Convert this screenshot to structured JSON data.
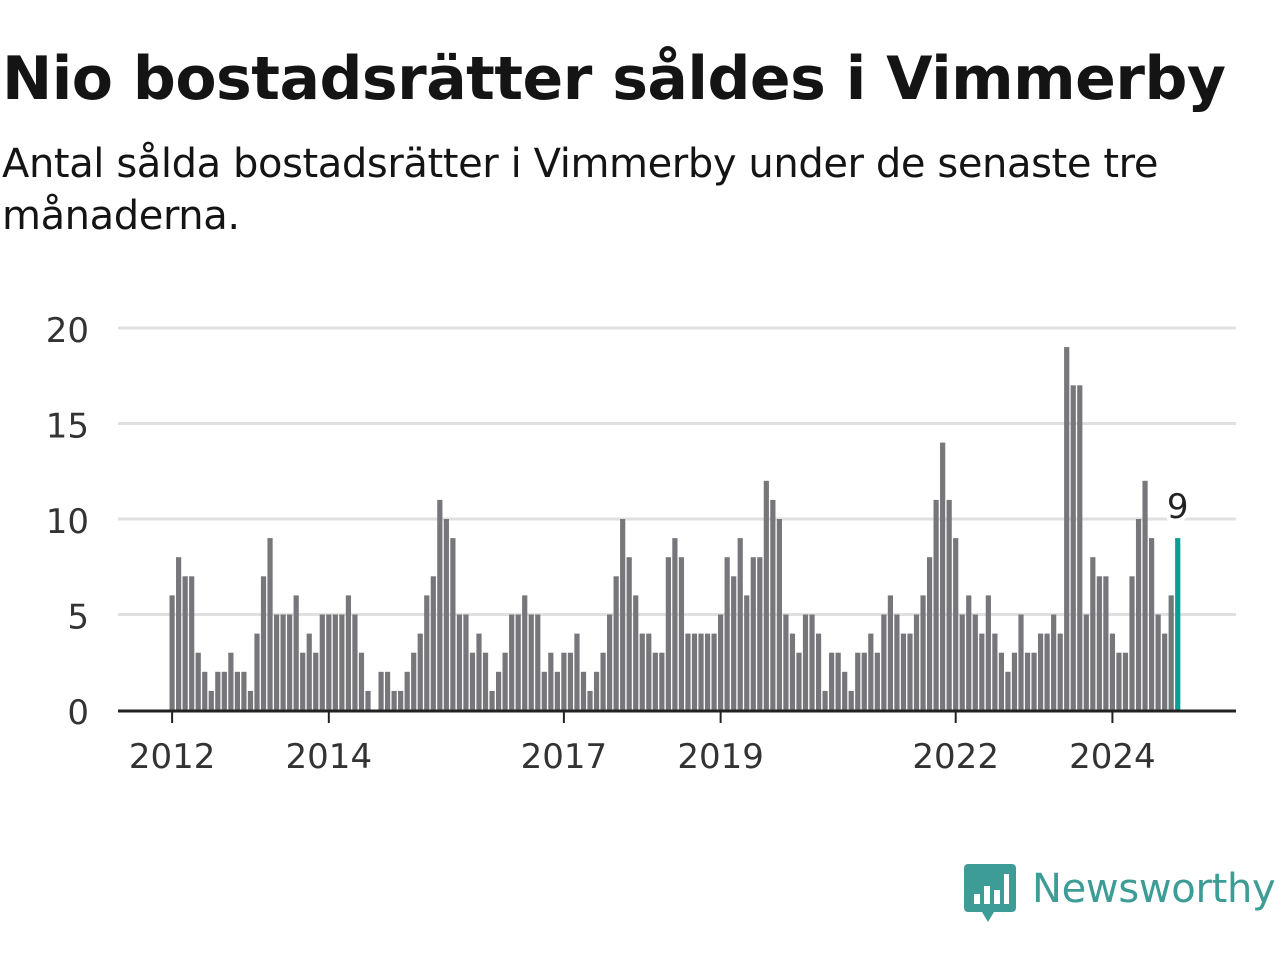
{
  "title": "Nio bostadsrätter såldes i Vimmerby",
  "subtitle": "Antal sålda bostadsrätter i Vimmerby under de senaste tre månaderna.",
  "brand": {
    "name": "Newsworthy",
    "icon": "newsworthy-logo-icon",
    "color": "#3d9c96"
  },
  "colors": {
    "bar": "#77767b",
    "highlight": "#0a9e94",
    "grid": "#e0e0e0",
    "axis": "#222222",
    "text": "#333333"
  },
  "chart_data": {
    "type": "bar",
    "title": "Nio bostadsrätter såldes i Vimmerby",
    "subtitle": "Antal sålda bostadsrätter i Vimmerby under de senaste tre månaderna.",
    "xlabel": "",
    "ylabel": "",
    "ylim": [
      0,
      20
    ],
    "yticks": [
      "0",
      "5",
      "10",
      "15",
      "20"
    ],
    "grid": true,
    "legend": "none",
    "x_tick_labels": [
      "2012",
      "2014",
      "2017",
      "2019",
      "2022",
      "2024"
    ],
    "x_tick_bar_index": [
      0,
      24,
      60,
      84,
      120,
      144
    ],
    "first_period": "2012-01",
    "frequency": "monthly",
    "highlight_label": "9",
    "values": [
      6,
      8,
      7,
      7,
      3,
      2,
      1,
      2,
      2,
      3,
      2,
      2,
      1,
      4,
      7,
      9,
      5,
      5,
      5,
      6,
      3,
      4,
      3,
      5,
      5,
      5,
      5,
      6,
      5,
      3,
      1,
      0,
      2,
      2,
      1,
      1,
      2,
      3,
      4,
      6,
      7,
      11,
      10,
      9,
      5,
      5,
      3,
      4,
      3,
      1,
      2,
      3,
      5,
      5,
      6,
      5,
      5,
      2,
      3,
      2,
      3,
      3,
      4,
      2,
      1,
      2,
      3,
      5,
      7,
      10,
      8,
      6,
      4,
      4,
      3,
      3,
      8,
      9,
      8,
      4,
      4,
      4,
      4,
      4,
      5,
      8,
      7,
      9,
      6,
      8,
      8,
      12,
      11,
      10,
      5,
      4,
      3,
      5,
      5,
      4,
      1,
      3,
      3,
      2,
      1,
      3,
      3,
      4,
      3,
      5,
      6,
      5,
      4,
      4,
      5,
      6,
      8,
      11,
      14,
      11,
      9,
      5,
      6,
      5,
      4,
      6,
      4,
      3,
      2,
      3,
      5,
      3,
      3,
      4,
      4,
      5,
      4,
      19,
      17,
      17,
      5,
      8,
      7,
      7,
      4,
      3,
      3,
      7,
      10,
      12,
      9,
      5,
      4,
      6,
      9
    ]
  }
}
